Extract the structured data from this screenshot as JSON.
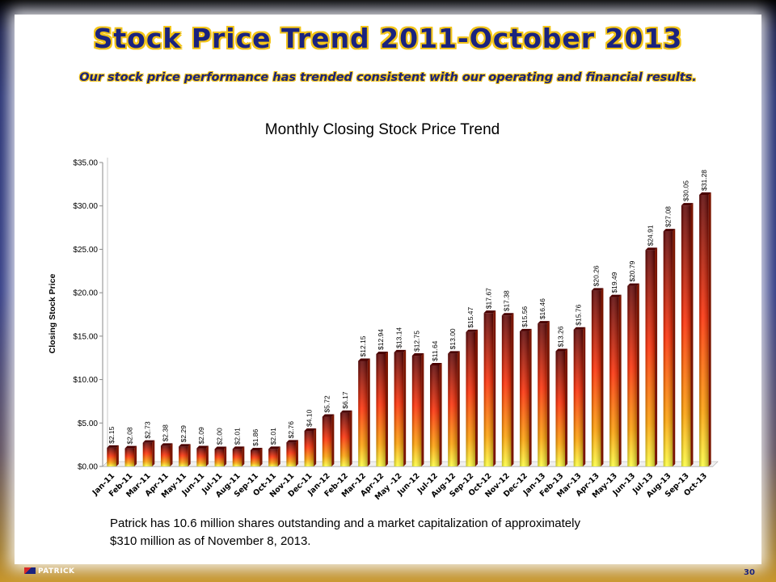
{
  "title": "Stock Price Trend  2011-October 2013",
  "subtitle": "Our stock price performance has trended consistent with our operating and financial results.",
  "footnote": {
    "line1": "Patrick has 10.6 million shares outstanding and a market capitalization of approximately",
    "line2": "$310 million as of November 8, 2013."
  },
  "footer": {
    "logo_text": "PATRICK",
    "page_number": "30"
  },
  "colors": {
    "title": "#1a237e",
    "title_outline": "#f2c419",
    "bar_top": "#5a0000",
    "bar_mid": "#ff2a00",
    "bar_bottom": "#ffff3a"
  },
  "chart_data": {
    "type": "bar",
    "title": "Monthly Closing Stock Price Trend",
    "ylabel": "Closing Stock Price",
    "xlabel": "",
    "ylim": [
      0,
      35
    ],
    "yticks": [
      "$0.00",
      "$5.00",
      "$10.00",
      "$15.00",
      "$20.00",
      "$25.00",
      "$30.00",
      "$35.00"
    ],
    "grid": false,
    "legend": "none",
    "categories": [
      "Jan-11",
      "Feb-11",
      "Mar-11",
      "Apr-11",
      "May-11",
      "Jun-11",
      "Jul-11",
      "Aug-11",
      "Sep-11",
      "Oct-11",
      "Nov-11",
      "Dec-11",
      "Jan-12",
      "Feb-12",
      "Mar-12",
      "Apr-12",
      "May -12",
      "Jun-12",
      "Jul-12",
      "Aug-12",
      "Sep-12",
      "Oct-12",
      "Nov-12",
      "Dec-12",
      "Jan-13",
      "Feb-13",
      "Mar-13",
      "Apr-13",
      "May-13",
      "Jun-13",
      "Jul-13",
      "Aug-13",
      "Sep-13",
      "Oct-13"
    ],
    "values": [
      2.15,
      2.08,
      2.73,
      2.38,
      2.29,
      2.09,
      2.0,
      2.01,
      1.86,
      2.01,
      2.76,
      4.1,
      5.72,
      6.17,
      12.15,
      12.94,
      13.14,
      12.75,
      11.64,
      13.0,
      15.47,
      17.67,
      17.38,
      15.56,
      16.46,
      13.26,
      15.76,
      20.26,
      19.49,
      20.79,
      24.91,
      27.08,
      30.05,
      31.28
    ],
    "data_labels": [
      "$2.15",
      "$2.08",
      "$2.73",
      "$2.38",
      "$2.29",
      "$2.09",
      "$2.00",
      "$2.01",
      "$1.86",
      "$2.01",
      "$2.76",
      "$4.10",
      "$5.72",
      "$6.17",
      "$12.15",
      "$12.94",
      "$13.14",
      "$12.75",
      "$11.64",
      "$13.00",
      "$15.47",
      "$17.67",
      "$17.38",
      "$15.56",
      "$16.46",
      "$13.26",
      "$15.76",
      "$20.26",
      "$19.49",
      "$20.79",
      "$24.91",
      "$27.08",
      "$30.05",
      "$31.28"
    ]
  }
}
